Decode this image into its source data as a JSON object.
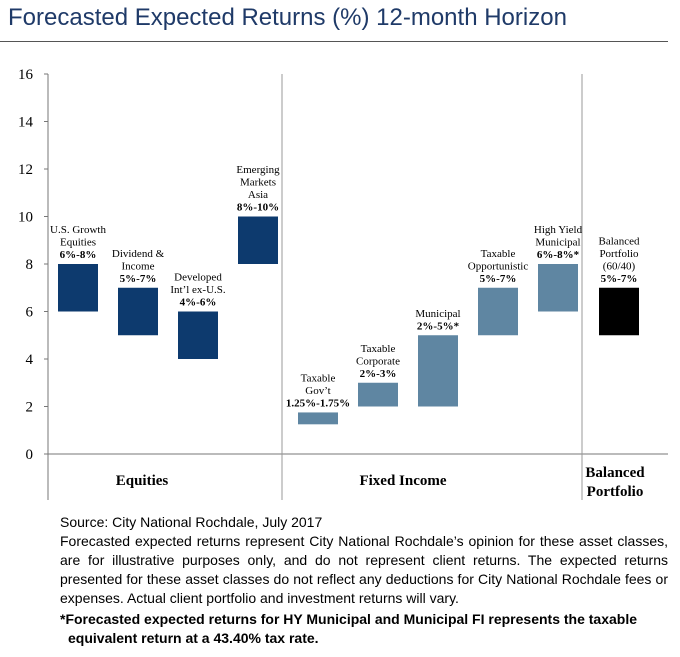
{
  "title": "Forecasted Expected Returns (%) 12-month Horizon",
  "source": "Source: City National Rochdale, July 2017",
  "note": "Forecasted expected returns represent City National Rochdale’s opinion for these asset classes, are for illustrative purposes only, and do not represent client returns. The expected returns presented for these asset classes do not reflect any deductions for City National Rochdale fees or expenses. Actual client portfolio and investment returns will vary.",
  "footnote": "*Forecasted expected returns for HY Municipal and Municipal FI represents the taxable equivalent return at a 43.40% tax rate.",
  "colors": {
    "equities": "#0d3a6e",
    "fixed_income": "#5f86a2",
    "balanced": "#000000",
    "title": "#1f3a68"
  },
  "chart_data": {
    "type": "bar",
    "subtype": "floating-range",
    "ylim": [
      0,
      16
    ],
    "yticks": [
      "0",
      "2",
      "4",
      "6",
      "8",
      "10",
      "12",
      "14",
      "16"
    ],
    "grid": false,
    "groups": [
      {
        "name": "Equities",
        "label_lines": [
          "Equities"
        ],
        "color": "#0d3a6e"
      },
      {
        "name": "Fixed Income",
        "label_lines": [
          "Fixed Income"
        ],
        "color": "#5f86a2"
      },
      {
        "name": "Balanced Portfolio",
        "label_lines": [
          "Balanced",
          "Portfolio"
        ],
        "color": "#000000"
      }
    ],
    "categories": [
      {
        "label_lines": [
          "U.S. Growth",
          "Equities"
        ],
        "range_label": "6%-8%",
        "low": 6,
        "high": 8,
        "group": 0
      },
      {
        "label_lines": [
          "Dividend &",
          "Income"
        ],
        "range_label": "5%-7%",
        "low": 5,
        "high": 7,
        "group": 0
      },
      {
        "label_lines": [
          "Developed",
          "Int’l ex-U.S."
        ],
        "range_label": "4%-6%",
        "low": 4,
        "high": 6,
        "group": 0
      },
      {
        "label_lines": [
          "Emerging",
          "Markets",
          "Asia"
        ],
        "range_label": "8%-10%",
        "low": 8,
        "high": 10,
        "group": 0
      },
      {
        "label_lines": [
          "Taxable",
          "Gov’t"
        ],
        "range_label": "1.25%-1.75%",
        "low": 1.25,
        "high": 1.75,
        "group": 1
      },
      {
        "label_lines": [
          "Taxable",
          "Corporate"
        ],
        "range_label": "2%-3%",
        "low": 2,
        "high": 3,
        "group": 1
      },
      {
        "label_lines": [
          "Municipal"
        ],
        "range_label": "2%-5%*",
        "low": 2,
        "high": 5,
        "group": 1
      },
      {
        "label_lines": [
          "Taxable",
          "Opportunistic"
        ],
        "range_label": "5%-7%",
        "low": 5,
        "high": 7,
        "group": 1
      },
      {
        "label_lines": [
          "High Yield",
          "Municipal"
        ],
        "range_label": "6%-8%*",
        "low": 6,
        "high": 8,
        "group": 1
      },
      {
        "label_lines": [
          "Balanced",
          "Portfolio",
          "(60/40)"
        ],
        "range_label": "5%-7%",
        "low": 5,
        "high": 7,
        "group": 2
      }
    ]
  }
}
